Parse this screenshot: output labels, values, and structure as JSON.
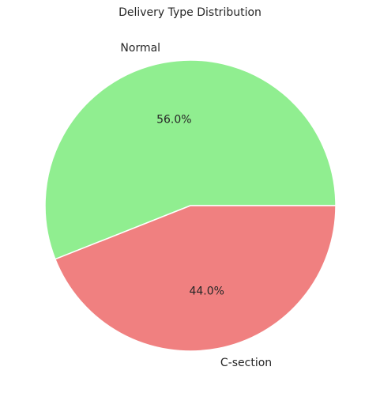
{
  "chart_data": {
    "type": "pie",
    "title": "Delivery Type Distribution",
    "categories": [
      "Normal",
      "C-section"
    ],
    "values": [
      56.0,
      44.0
    ],
    "percent_labels": [
      "56.0%",
      "44.0%"
    ],
    "colors": [
      "#90ee90",
      "#f08080"
    ],
    "legend": "none"
  }
}
